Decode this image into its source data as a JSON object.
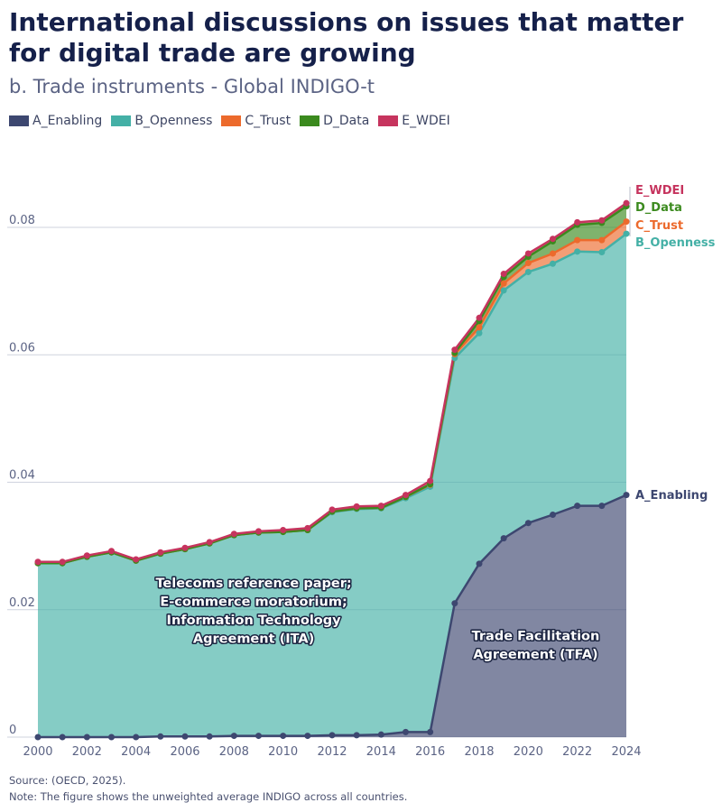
{
  "title": "International discussions on issues that matter for digital trade are growing",
  "subtitle": "b. Trade instruments - Global INDIGO-t",
  "footer": {
    "source": "Source: (OECD, 2025).",
    "note": "Note: The figure shows the unweighted average INDIGO across all countries."
  },
  "chart_data": {
    "type": "area",
    "stacked": true,
    "x": [
      2000,
      2001,
      2002,
      2003,
      2004,
      2005,
      2006,
      2007,
      2008,
      2009,
      2010,
      2011,
      2012,
      2013,
      2014,
      2015,
      2016,
      2017,
      2018,
      2019,
      2020,
      2021,
      2022,
      2023,
      2024
    ],
    "x_ticks": [
      "2000",
      "2002",
      "2004",
      "2006",
      "2008",
      "2010",
      "2012",
      "2014",
      "2016",
      "2018",
      "2020",
      "2022",
      "2024"
    ],
    "y_ticks": [
      "0",
      "0.02",
      "0.04",
      "0.06",
      "0.08"
    ],
    "ylim": [
      0,
      0.09
    ],
    "xlabel": "",
    "ylabel": "",
    "grid": "horizontal",
    "legend_position": "top-left",
    "series": [
      {
        "name": "A_Enabling",
        "color": "#3d4770",
        "values": [
          0,
          0,
          0,
          0,
          0,
          0.0001,
          0.0001,
          0.0001,
          0.0002,
          0.0002,
          0.0002,
          0.0002,
          0.0003,
          0.0003,
          0.0004,
          0.0008,
          0.0008,
          0.021,
          0.0272,
          0.0312,
          0.0336,
          0.0349,
          0.0363,
          0.0363,
          0.038
        ]
      },
      {
        "name": "B_Openness",
        "color": "#44b0a6",
        "values": [
          0.0273,
          0.0273,
          0.0283,
          0.029,
          0.0277,
          0.0287,
          0.0294,
          0.0303,
          0.0315,
          0.0319,
          0.032,
          0.0323,
          0.035,
          0.0355,
          0.0355,
          0.0367,
          0.0385,
          0.0385,
          0.0362,
          0.0389,
          0.0394,
          0.0394,
          0.0399,
          0.0398,
          0.041
        ]
      },
      {
        "name": "C_Trust",
        "color": "#ec6a2c",
        "values": [
          0,
          0,
          0,
          0,
          0,
          0,
          0,
          0,
          0,
          0,
          0,
          0,
          0.0001,
          0.0001,
          0.0001,
          0.0002,
          0.0003,
          0.0006,
          0.0009,
          0.0011,
          0.0014,
          0.0016,
          0.0018,
          0.0019,
          0.0019
        ]
      },
      {
        "name": "D_Data",
        "color": "#3b8a1e",
        "values": [
          0,
          0,
          0,
          0,
          0,
          0,
          0,
          0,
          0,
          0,
          0,
          0,
          0,
          0,
          0,
          0,
          0.0001,
          0.0002,
          0.001,
          0.001,
          0.001,
          0.0019,
          0.0024,
          0.0027,
          0.0024
        ]
      },
      {
        "name": "E_WDEI",
        "color": "#c6345e",
        "values": [
          0.0002,
          0.0002,
          0.0002,
          0.0002,
          0.0002,
          0.0002,
          0.0002,
          0.0002,
          0.0002,
          0.0002,
          0.0003,
          0.0003,
          0.0003,
          0.0003,
          0.0003,
          0.0003,
          0.0005,
          0.0005,
          0.0005,
          0.0005,
          0.0005,
          0.0004,
          0.0004,
          0.0004,
          0.0005
        ]
      }
    ],
    "annotations": [
      {
        "text": "Telecoms reference paper;\nE-commerce moratorium;\nInformation Technology\nAgreement (ITA)",
        "x": 2008.8,
        "y": 0.0235
      },
      {
        "text": "Trade Facilitation\nAgreement (TFA)",
        "x": 2020.3,
        "y": 0.0152
      }
    ]
  }
}
